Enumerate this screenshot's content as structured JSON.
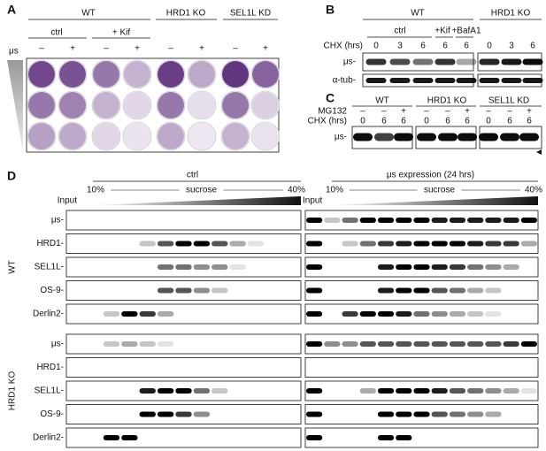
{
  "panel_a": {
    "label": "A",
    "groups": [
      "WT",
      "HRD1 KO",
      "SEL1L KD"
    ],
    "wt_conditions": [
      "ctrl",
      "+ Kif"
    ],
    "signs": [
      "–",
      "+",
      "–",
      "+",
      "–",
      "+",
      "–",
      "+"
    ],
    "side_label": "μs"
  },
  "panel_b": {
    "label": "B",
    "groups": [
      "WT",
      "HRD1 KO"
    ],
    "conditions": [
      "ctrl",
      "+Kif",
      "+BafA1"
    ],
    "chx_label": "CHX (hrs)",
    "chx_times": [
      0,
      3,
      6,
      6,
      6,
      0,
      3,
      6
    ],
    "blots": [
      "μs-",
      "α-tub-"
    ]
  },
  "panel_c": {
    "label": "C",
    "groups": [
      "WT",
      "HRD1 KO",
      "SEL1L KD"
    ],
    "mg132_label": "MG132",
    "mg132": [
      "–",
      "–",
      "+",
      "–",
      "–",
      "+",
      "–",
      "–",
      "+"
    ],
    "chx_label": "CHX (hrs)",
    "chx_times": [
      0,
      6,
      6,
      0,
      6,
      6,
      0,
      6,
      6
    ],
    "blot": "μs-"
  },
  "panel_d": {
    "label": "D",
    "conditions": [
      "ctrl",
      "μs expression (24 hrs)"
    ],
    "gradient": {
      "low": "10%",
      "name": "sucrose",
      "high": "40%"
    },
    "input_label": "Input",
    "groups": [
      {
        "name": "WT",
        "blots": [
          "μs-",
          "HRD1-",
          "SEL1L-",
          "OS-9-",
          "Derlin2-"
        ]
      },
      {
        "name": "HRD1 KO",
        "blots": [
          "μs-",
          "HRD1-",
          "SEL1L-",
          "OS-9-",
          "Derlin2-"
        ]
      }
    ]
  }
}
